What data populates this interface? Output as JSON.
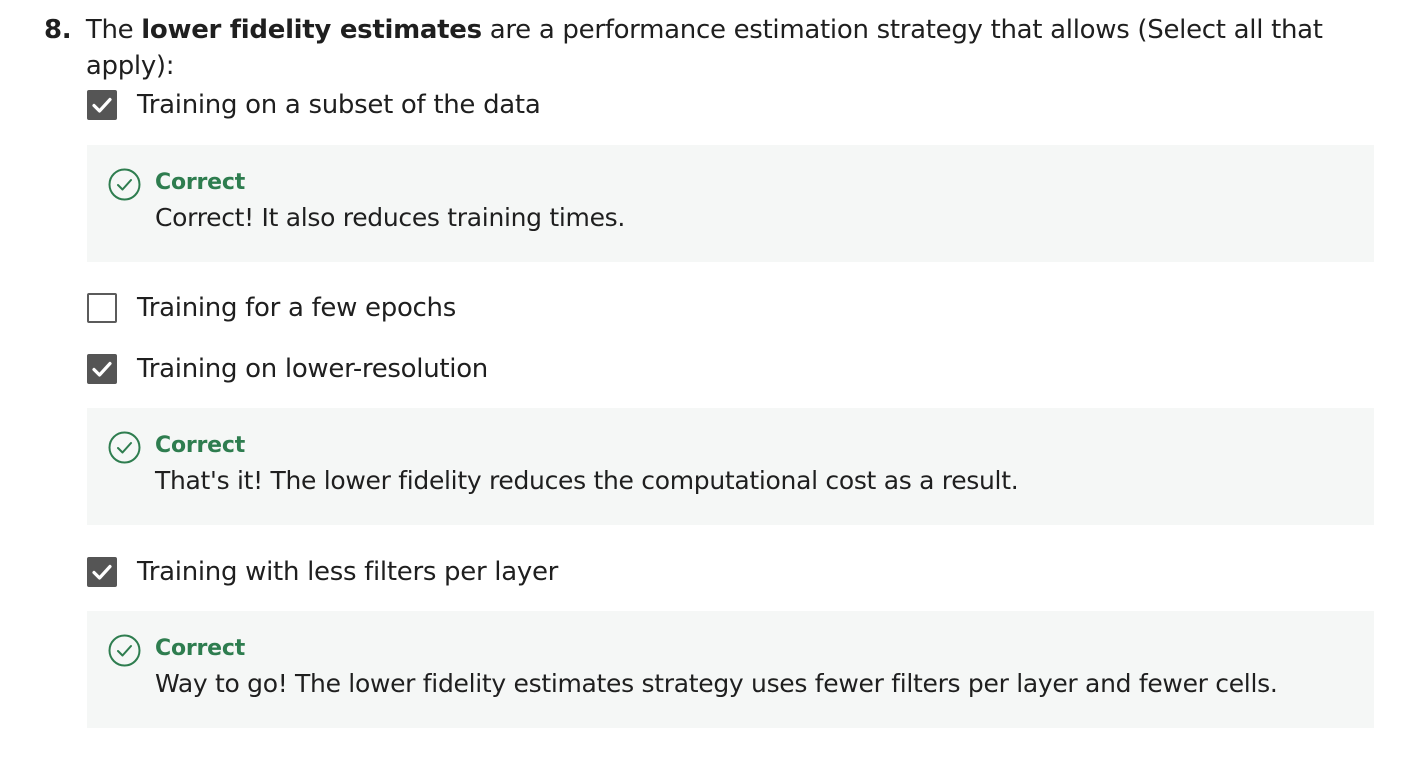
{
  "question": {
    "number": "8.",
    "prefix": "The ",
    "bold": "lower fidelity estimates",
    "suffix": " are a performance estimation strategy that allows (Select all that apply):"
  },
  "options": [
    {
      "label": "Training on a subset of the data",
      "checked": true,
      "feedback": {
        "title": "Correct",
        "text": "Correct! It also reduces training times."
      }
    },
    {
      "label": "Training for a few epochs",
      "checked": false
    },
    {
      "label": "Training on lower-resolution",
      "checked": true,
      "feedback": {
        "title": "Correct",
        "text": "That's it! The lower fidelity reduces the computational cost as a result."
      }
    },
    {
      "label": "Training with less filters per layer",
      "checked": true,
      "feedback": {
        "title": "Correct",
        "text": "Way to go! The lower fidelity estimates strategy uses fewer filters per layer and fewer cells."
      }
    }
  ],
  "colors": {
    "correct_green": "#2e7d4f",
    "checkbox_checked": "#555555",
    "feedback_bg": "#f5f7f6"
  },
  "icons": {
    "check": "check-icon",
    "correct": "check-circle-icon"
  }
}
